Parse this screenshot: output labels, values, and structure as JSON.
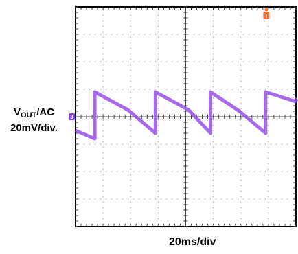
{
  "labels": {
    "y_main": "V",
    "y_sub": "OUT",
    "y_suffix": "/AC",
    "y_scale": "20mV/div.",
    "x_scale": "20ms/div"
  },
  "markers": {
    "channel": "3",
    "trigger": "T"
  },
  "colors": {
    "trace": "#9b59e8",
    "marker": "#7b3fe4",
    "trigger": "#ff6a2b",
    "grid": "#8a8a8a",
    "frame": "#000000"
  },
  "chart_data": {
    "type": "line",
    "grid": true,
    "divisions": {
      "x": 8,
      "y": 8
    },
    "x_unit": "ms",
    "y_unit": "mV",
    "x_per_div": 20,
    "y_per_div": 20,
    "xlim": [
      -80,
      80
    ],
    "ylim": [
      -80,
      80
    ],
    "series": [
      {
        "x": [
          -80,
          -66,
          -66,
          -42,
          -22,
          -22,
          2,
          18,
          18,
          39,
          58,
          58,
          80
        ],
        "y": [
          -10,
          -16,
          18,
          5,
          -12,
          18,
          5,
          -12,
          18,
          4,
          -12,
          18,
          11
        ]
      }
    ]
  }
}
